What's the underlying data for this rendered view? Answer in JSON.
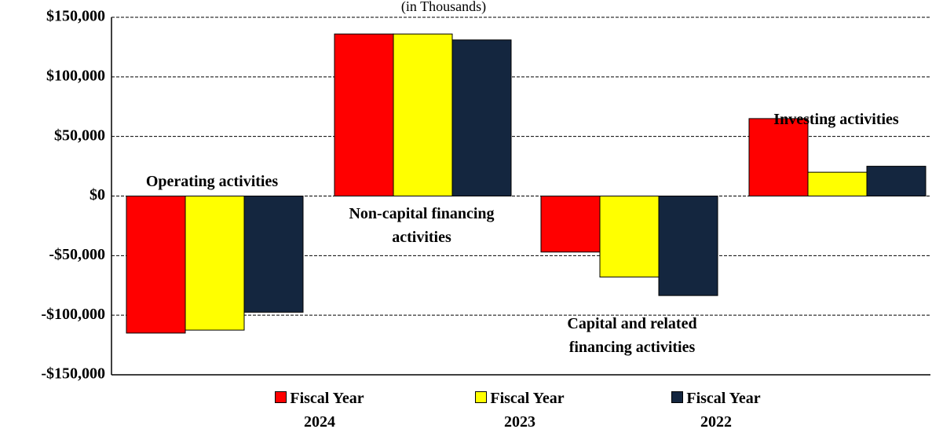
{
  "chart_data": {
    "type": "bar",
    "subtitle": "(in Thousands)",
    "categories": [
      "Operating activities",
      "Non-capital financing activities",
      "Capital and related financing activities",
      "Investing activities"
    ],
    "series": [
      {
        "name": "Fiscal Year 2024",
        "color": "#ff0000",
        "values": [
          -115000,
          136000,
          -47000,
          65000
        ]
      },
      {
        "name": "Fiscal Year 2023",
        "color": "#ffff00",
        "values": [
          -112500,
          136000,
          -68000,
          20000
        ]
      },
      {
        "name": "Fiscal Year 2022",
        "color": "#14263f",
        "values": [
          -97500,
          131000,
          -83500,
          25000
        ]
      }
    ],
    "ylim": [
      -150000,
      150000
    ],
    "yticks": [
      {
        "value": -150000,
        "label": "-$150,000"
      },
      {
        "value": -100000,
        "label": "-$100,000"
      },
      {
        "value": -50000,
        "label": "-$50,000"
      },
      {
        "value": 0,
        "label": "$0"
      },
      {
        "value": 50000,
        "label": "$50,000"
      },
      {
        "value": 100000,
        "label": "$100,000"
      },
      {
        "value": 150000,
        "label": "$150,000"
      }
    ],
    "grid": true
  }
}
